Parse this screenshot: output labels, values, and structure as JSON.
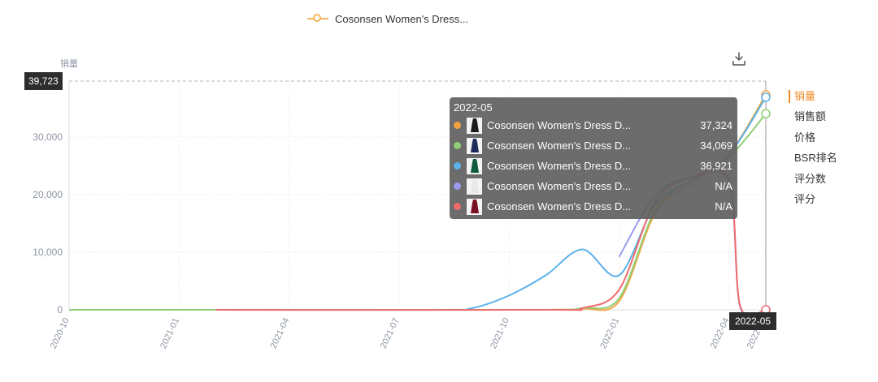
{
  "legend": {
    "label": "Cosonsen Women's Dress..."
  },
  "download_icon": "download-icon",
  "metrics": [
    {
      "label": "销量",
      "active": true
    },
    {
      "label": "销售额",
      "active": false
    },
    {
      "label": "价格",
      "active": false
    },
    {
      "label": "BSR排名",
      "active": false
    },
    {
      "label": "评分数",
      "active": false
    },
    {
      "label": "评分",
      "active": false
    }
  ],
  "max_marker": "39,723",
  "cursor_date": "2022-05",
  "tooltip": {
    "title": "2022-05",
    "rows": [
      {
        "name": "Cosonsen Women's Dress D...",
        "value": "37,324",
        "color": "#f5a340",
        "thumb": "#1c1c1c"
      },
      {
        "name": "Cosonsen Women's Dress D...",
        "value": "34,069",
        "color": "#8fcf76",
        "thumb": "#1d2a5c"
      },
      {
        "name": "Cosonsen Women's Dress D...",
        "value": "36,921",
        "color": "#5cb2ea",
        "thumb": "#0e5a3a"
      },
      {
        "name": "Cosonsen Women's Dress D...",
        "value": "N/A",
        "color": "#9a9af0",
        "thumb": "#e8e8e8"
      },
      {
        "name": "Cosonsen Women's Dress D...",
        "value": "N/A",
        "color": "#f06b6b",
        "thumb": "#7a1022"
      }
    ]
  },
  "chart_data": {
    "type": "line",
    "ylabel": "销量",
    "ylim": [
      0,
      39723
    ],
    "yticks": [
      0,
      10000,
      20000,
      30000
    ],
    "ytick_labels": [
      "0",
      "10,000",
      "20,000",
      "30,000"
    ],
    "x_range": [
      "2020-10",
      "2022-05"
    ],
    "xtick_labels": [
      "2020-10",
      "2021-01",
      "2021-04",
      "2021-07",
      "2021-10",
      "2022-01",
      "2022-04",
      "2022-05"
    ],
    "grid": true,
    "series": [
      {
        "name": "Cosonsen Women's Dress D...",
        "color": "#f5a340",
        "points": [
          [
            "2021-02",
            0
          ],
          [
            "2021-08",
            0
          ],
          [
            "2021-11",
            0
          ],
          [
            "2021-12",
            200
          ],
          [
            "2022-01",
            1500
          ],
          [
            "2022-02",
            17000
          ],
          [
            "2022-03",
            22000
          ],
          [
            "2022-04",
            27000
          ],
          [
            "2022-05",
            37324
          ]
        ]
      },
      {
        "name": "Cosonsen Women's Dress D...",
        "color": "#8fcf76",
        "points": [
          [
            "2020-10",
            0
          ],
          [
            "2021-02",
            0
          ],
          [
            "2021-06",
            0
          ],
          [
            "2021-11",
            0
          ],
          [
            "2021-12",
            300
          ],
          [
            "2022-01",
            2000
          ],
          [
            "2022-02",
            17500
          ],
          [
            "2022-03",
            22500
          ],
          [
            "2022-04",
            26500
          ],
          [
            "2022-05",
            34069
          ]
        ]
      },
      {
        "name": "Cosonsen Women's Dress D...",
        "color": "#5cb2ea",
        "points": [
          [
            "2021-02",
            0
          ],
          [
            "2021-08",
            0
          ],
          [
            "2021-09",
            300
          ],
          [
            "2021-10",
            2500
          ],
          [
            "2021-11",
            6000
          ],
          [
            "2021-12",
            10500
          ],
          [
            "2022-01",
            6000
          ],
          [
            "2022-02",
            18500
          ],
          [
            "2022-03",
            22500
          ],
          [
            "2022-04",
            27000
          ],
          [
            "2022-05",
            36921
          ]
        ]
      },
      {
        "name": "Cosonsen Women's Dress D...",
        "color": "#9a9af0",
        "points": [
          [
            "2022-01",
            9200
          ],
          [
            "2022-02",
            20000
          ],
          [
            "2022-03",
            23000
          ],
          [
            "2022-04",
            22000
          ],
          [
            "2022-04",
            500
          ],
          [
            "2022-05",
            0
          ]
        ]
      },
      {
        "name": "Cosonsen Women's Dress D...",
        "color": "#f06b6b",
        "points": [
          [
            "2021-02",
            0
          ],
          [
            "2021-11",
            0
          ],
          [
            "2021-12",
            300
          ],
          [
            "2022-01",
            3500
          ],
          [
            "2022-02",
            19000
          ],
          [
            "2022-03",
            23000
          ],
          [
            "2022-04",
            22500
          ],
          [
            "2022-04",
            700
          ],
          [
            "2022-05",
            0
          ]
        ]
      }
    ]
  }
}
